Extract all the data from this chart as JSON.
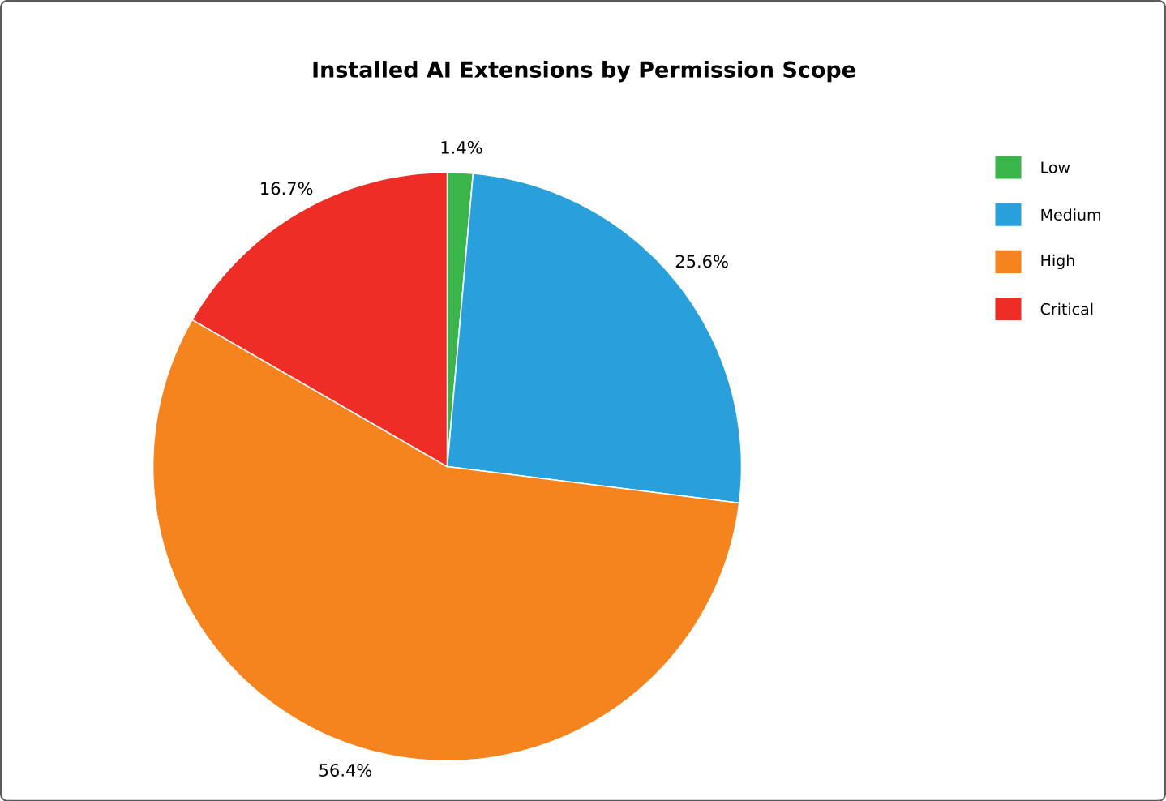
{
  "chart_data": {
    "type": "pie",
    "title": "Installed AI Extensions by Permission Scope",
    "categories": [
      "Low",
      "Medium",
      "High",
      "Critical"
    ],
    "values": [
      1.4,
      25.6,
      56.4,
      16.7
    ],
    "colors": [
      "#3ab54a",
      "#29a0db",
      "#f5841f",
      "#ee2d27"
    ],
    "value_labels": [
      "1.4%",
      "25.6%",
      "56.4%",
      "16.7%"
    ],
    "legend": "top right"
  }
}
